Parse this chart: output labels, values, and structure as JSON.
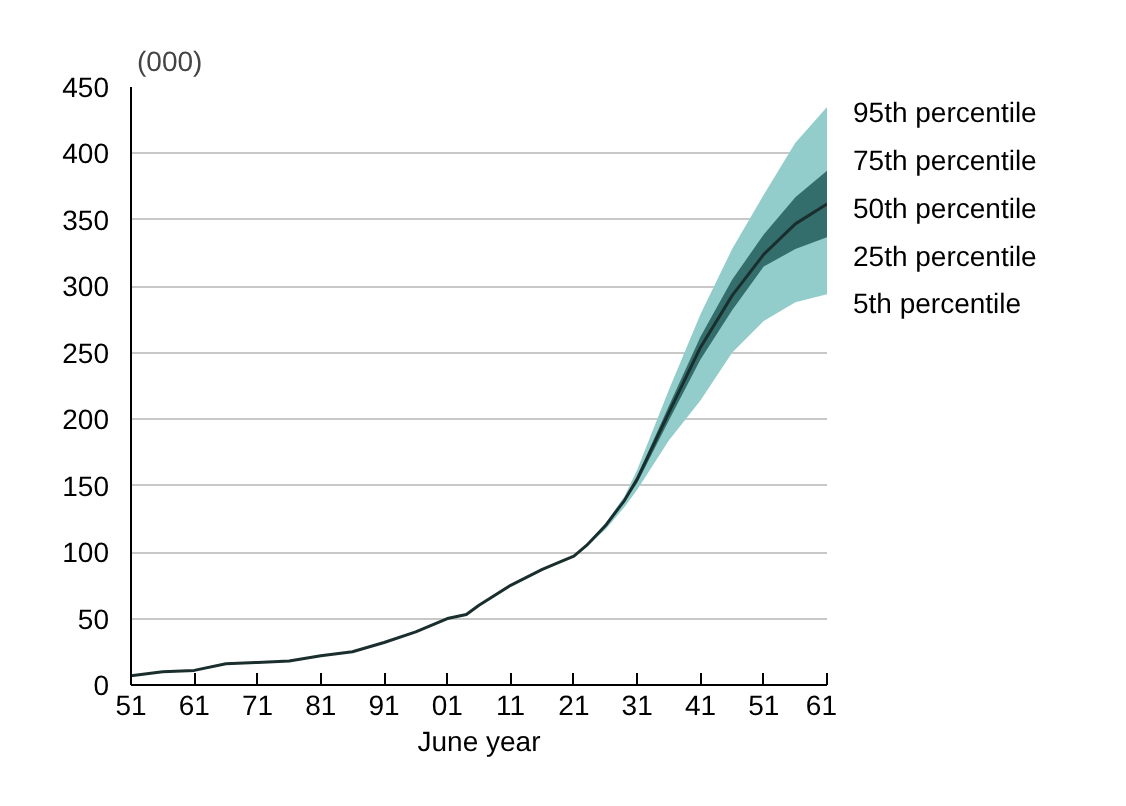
{
  "chart_data": {
    "type": "line",
    "ylabel": "(000)",
    "xlabel": "June year",
    "xlim": [
      1951,
      2061
    ],
    "ylim": [
      0,
      450
    ],
    "xticks": [
      {
        "value": 1951,
        "label": "51"
      },
      {
        "value": 1961,
        "label": "61"
      },
      {
        "value": 1971,
        "label": "71"
      },
      {
        "value": 1981,
        "label": "81"
      },
      {
        "value": 1991,
        "label": "91"
      },
      {
        "value": 2001,
        "label": "01"
      },
      {
        "value": 2011,
        "label": "11"
      },
      {
        "value": 2021,
        "label": "21"
      },
      {
        "value": 2031,
        "label": "31"
      },
      {
        "value": 2041,
        "label": "41"
      },
      {
        "value": 2051,
        "label": "51"
      },
      {
        "value": 2061,
        "label": "61"
      }
    ],
    "yticks": [
      0,
      50,
      100,
      150,
      200,
      250,
      300,
      350,
      400,
      450
    ],
    "grid": "y",
    "marker": "none",
    "line_style": "solid",
    "annotations": [
      "95th percentile",
      "75th percentile",
      "50th percentile",
      "25th percentile",
      "5th percentile"
    ],
    "series": [
      {
        "type": "area",
        "color": "#93cdcb",
        "x": [
          2021,
          2023,
          2026,
          2029,
          2031,
          2036,
          2041,
          2046,
          2051,
          2056,
          2061
        ],
        "values": [
          null,
          null,
          null,
          null,
          null,
          null,
          null,
          null,
          null,
          null,
          null
        ],
        "upper": [
          97,
          105,
          122,
          142,
          162,
          222,
          279,
          328,
          369,
          408,
          435
        ],
        "lower": [
          97,
          104,
          117,
          134,
          147,
          184,
          214,
          250,
          274,
          288,
          294
        ]
      },
      {
        "type": "area",
        "color": "#336e6c",
        "x": [
          2021,
          2023,
          2026,
          2029,
          2031,
          2036,
          2041,
          2046,
          2051,
          2056,
          2061
        ],
        "values": [
          null,
          null,
          null,
          null,
          null,
          null,
          null,
          null,
          null,
          null,
          null
        ],
        "upper": [
          97,
          105,
          121,
          140,
          157,
          210,
          262,
          305,
          339,
          367,
          387
        ],
        "lower": [
          97,
          105,
          119,
          138,
          152,
          199,
          245,
          282,
          315,
          328,
          337
        ]
      },
      {
        "color": "#1a2e2e",
        "x": [
          1951,
          1956,
          1961,
          1966,
          1971,
          1976,
          1981,
          1986,
          1991,
          1996,
          2001,
          2004,
          2006,
          2011,
          2016,
          2019,
          2021,
          2023,
          2026,
          2029,
          2031,
          2036,
          2041,
          2046,
          2051,
          2056,
          2061
        ],
        "values": [
          7,
          10,
          11,
          16,
          17,
          18,
          22,
          25,
          32,
          40,
          50,
          53,
          60,
          75,
          87,
          93,
          97,
          105,
          120,
          139,
          155,
          205,
          254,
          293,
          324,
          347,
          362
        ]
      }
    ]
  }
}
